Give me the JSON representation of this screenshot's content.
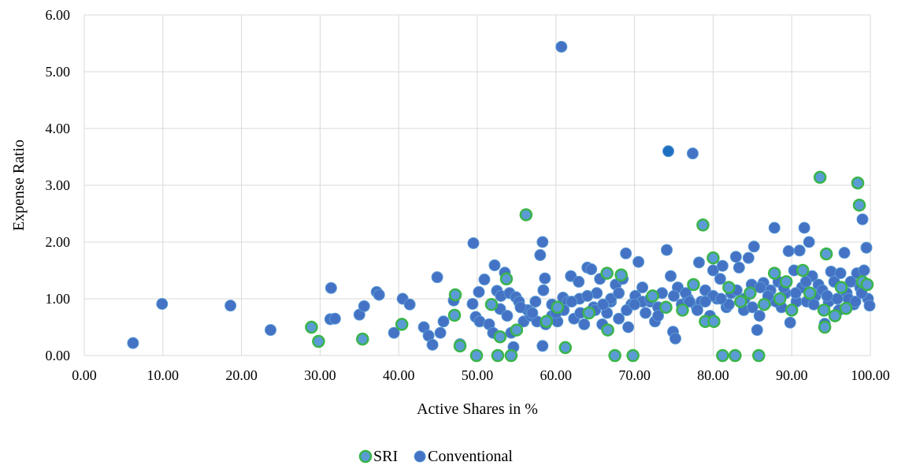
{
  "chart_data": {
    "type": "scatter",
    "xlabel": "Active Shares in %",
    "ylabel": "Expense Ratio",
    "xlim": [
      0,
      100
    ],
    "ylim": [
      0,
      6
    ],
    "x_ticks": [
      "0.00",
      "10.00",
      "20.00",
      "30.00",
      "40.00",
      "50.00",
      "60.00",
      "70.00",
      "80.00",
      "90.00",
      "100.00"
    ],
    "y_ticks": [
      "0.00",
      "1.00",
      "2.00",
      "3.00",
      "4.00",
      "5.00",
      "6.00"
    ],
    "grid": true,
    "legend": "bottom-center",
    "series": [
      {
        "name": "SRI",
        "fill": "#5b9bd5",
        "stroke": "#39b54a",
        "points": [
          [
            28.9,
            0.5
          ],
          [
            29.8,
            0.25
          ],
          [
            35.4,
            0.29
          ],
          [
            40.4,
            0.55
          ],
          [
            47.2,
            1.07
          ],
          [
            47.1,
            0.71
          ],
          [
            47.8,
            0.17
          ],
          [
            49.9,
            0.0
          ],
          [
            51.8,
            0.9
          ],
          [
            52.6,
            0.0
          ],
          [
            52.9,
            0.33
          ],
          [
            53.7,
            1.35
          ],
          [
            54.3,
            0.0
          ],
          [
            56.2,
            2.48
          ],
          [
            55.0,
            0.45
          ],
          [
            60.2,
            0.85
          ],
          [
            61.2,
            0.14
          ],
          [
            66.5,
            1.45
          ],
          [
            66.6,
            0.45
          ],
          [
            67.5,
            0.0
          ],
          [
            68.3,
            1.42
          ],
          [
            69.8,
            0.0
          ],
          [
            72.3,
            1.05
          ],
          [
            74.0,
            0.85
          ],
          [
            77.5,
            1.25
          ],
          [
            78.7,
            2.3
          ],
          [
            79.0,
            0.6
          ],
          [
            80.0,
            1.72
          ],
          [
            80.1,
            0.6
          ],
          [
            81.2,
            0.0
          ],
          [
            82.0,
            1.2
          ],
          [
            82.8,
            0.0
          ],
          [
            84.7,
            1.1
          ],
          [
            85.8,
            0.0
          ],
          [
            86.5,
            0.9
          ],
          [
            87.8,
            1.45
          ],
          [
            88.5,
            1.0
          ],
          [
            90.0,
            0.8
          ],
          [
            91.4,
            1.5
          ],
          [
            92.3,
            1.1
          ],
          [
            93.6,
            3.14
          ],
          [
            94.2,
            0.5
          ],
          [
            94.4,
            1.79
          ],
          [
            95.5,
            0.7
          ],
          [
            96.3,
            1.2
          ],
          [
            96.9,
            0.83
          ],
          [
            98.4,
            3.04
          ],
          [
            98.6,
            2.65
          ],
          [
            99.0,
            1.3
          ],
          [
            99.6,
            1.25
          ],
          [
            94.1,
            0.8
          ],
          [
            89.3,
            1.3
          ],
          [
            83.5,
            0.95
          ],
          [
            76.1,
            0.8
          ],
          [
            64.2,
            0.75
          ],
          [
            58.8,
            0.6
          ]
        ]
      },
      {
        "name": "Conventional",
        "fill": "#4472c4",
        "stroke": "#5b9bd5",
        "points": [
          [
            6.2,
            0.22
          ],
          [
            9.9,
            0.91
          ],
          [
            18.6,
            0.88
          ],
          [
            23.7,
            0.45
          ],
          [
            31.4,
            1.19
          ],
          [
            31.3,
            0.64
          ],
          [
            31.9,
            0.65
          ],
          [
            35.0,
            0.72
          ],
          [
            35.6,
            0.87
          ],
          [
            37.2,
            1.12
          ],
          [
            37.5,
            1.07
          ],
          [
            39.4,
            0.4
          ],
          [
            40.5,
            1.0
          ],
          [
            41.4,
            0.9
          ],
          [
            43.2,
            0.5
          ],
          [
            43.8,
            0.35
          ],
          [
            44.3,
            0.19
          ],
          [
            44.9,
            1.38
          ],
          [
            45.3,
            0.4
          ],
          [
            45.7,
            0.6
          ],
          [
            47.0,
            0.97
          ],
          [
            47.8,
            0.2
          ],
          [
            49.5,
            1.98
          ],
          [
            49.4,
            0.91
          ],
          [
            49.8,
            0.68
          ],
          [
            50.2,
            1.12
          ],
          [
            50.3,
            0.6
          ],
          [
            50.9,
            1.34
          ],
          [
            51.5,
            0.55
          ],
          [
            52.0,
            0.4
          ],
          [
            52.2,
            1.59
          ],
          [
            52.5,
            1.14
          ],
          [
            52.9,
            0.82
          ],
          [
            53.0,
            1.05
          ],
          [
            53.5,
            1.46
          ],
          [
            53.8,
            0.7
          ],
          [
            54.1,
            1.1
          ],
          [
            54.3,
            0.4
          ],
          [
            54.6,
            0.15
          ],
          [
            54.9,
            1.03
          ],
          [
            55.3,
            0.95
          ],
          [
            55.9,
            0.6
          ],
          [
            56.4,
            0.8
          ],
          [
            56.8,
            0.7
          ],
          [
            57.4,
            0.95
          ],
          [
            57.6,
            0.6
          ],
          [
            58.0,
            1.77
          ],
          [
            58.3,
            2.0
          ],
          [
            58.4,
            1.15
          ],
          [
            58.6,
            1.36
          ],
          [
            58.3,
            0.17
          ],
          [
            58.7,
            0.55
          ],
          [
            59.5,
            0.7
          ],
          [
            60.2,
            0.6
          ],
          [
            60.7,
            5.44
          ],
          [
            60.9,
            1.02
          ],
          [
            61.5,
            0.95
          ],
          [
            61.9,
            1.4
          ],
          [
            62.3,
            0.65
          ],
          [
            62.9,
            1.3
          ],
          [
            63.1,
            0.75
          ],
          [
            63.6,
            0.55
          ],
          [
            64.0,
            1.55
          ],
          [
            64.5,
            1.52
          ],
          [
            64.8,
            0.85
          ],
          [
            65.2,
            1.1
          ],
          [
            65.6,
            1.35
          ],
          [
            65.9,
            0.55
          ],
          [
            66.5,
            0.75
          ],
          [
            67.0,
            0.95
          ],
          [
            67.6,
            1.25
          ],
          [
            68.0,
            0.65
          ],
          [
            68.5,
            1.35
          ],
          [
            68.9,
            1.8
          ],
          [
            69.2,
            0.5
          ],
          [
            69.6,
            0.9
          ],
          [
            70.1,
            1.05
          ],
          [
            70.5,
            1.65
          ],
          [
            71.0,
            1.2
          ],
          [
            71.4,
            0.75
          ],
          [
            72.0,
            0.95
          ],
          [
            72.6,
            0.6
          ],
          [
            73.0,
            0.85
          ],
          [
            73.5,
            1.1
          ],
          [
            74.1,
            1.86
          ],
          [
            74.3,
            3.6
          ],
          [
            74.6,
            1.4
          ],
          [
            74.9,
            0.42
          ],
          [
            75.2,
            0.3
          ],
          [
            75.5,
            1.2
          ],
          [
            76.0,
            0.9
          ],
          [
            76.8,
            1.0
          ],
          [
            77.4,
            3.56
          ],
          [
            77.9,
            0.85
          ],
          [
            78.2,
            1.64
          ],
          [
            78.5,
            0.95
          ],
          [
            79.0,
            1.15
          ],
          [
            79.6,
            0.7
          ],
          [
            80.0,
            1.5
          ],
          [
            80.5,
            1.0
          ],
          [
            80.9,
            1.35
          ],
          [
            81.2,
            1.58
          ],
          [
            81.7,
            0.85
          ],
          [
            82.3,
            1.1
          ],
          [
            82.9,
            1.74
          ],
          [
            83.3,
            1.55
          ],
          [
            83.9,
            0.8
          ],
          [
            84.5,
            1.72
          ],
          [
            84.9,
            1.25
          ],
          [
            85.2,
            1.92
          ],
          [
            85.6,
            0.45
          ],
          [
            85.9,
            0.7
          ],
          [
            86.4,
            1.28
          ],
          [
            86.9,
            0.95
          ],
          [
            87.3,
            1.15
          ],
          [
            87.8,
            2.25
          ],
          [
            88.3,
            1.3
          ],
          [
            88.7,
            0.85
          ],
          [
            89.2,
            1.1
          ],
          [
            89.6,
            1.84
          ],
          [
            89.8,
            0.58
          ],
          [
            90.3,
            1.5
          ],
          [
            90.6,
            0.95
          ],
          [
            91.0,
            1.85
          ],
          [
            91.3,
            1.2
          ],
          [
            91.6,
            2.25
          ],
          [
            91.9,
            0.95
          ],
          [
            92.2,
            2.0
          ],
          [
            92.6,
            1.4
          ],
          [
            93.0,
            1.05
          ],
          [
            93.4,
            1.25
          ],
          [
            93.9,
            1.15
          ],
          [
            94.2,
            0.56
          ],
          [
            94.7,
            0.95
          ],
          [
            95.0,
            1.48
          ],
          [
            95.4,
            1.3
          ],
          [
            95.8,
            1.0
          ],
          [
            96.2,
            1.45
          ],
          [
            96.7,
            1.81
          ],
          [
            97.0,
            1.1
          ],
          [
            97.5,
            1.3
          ],
          [
            97.9,
            0.9
          ],
          [
            98.3,
            1.45
          ],
          [
            98.7,
            1.2
          ],
          [
            99.0,
            2.4
          ],
          [
            99.2,
            1.5
          ],
          [
            99.5,
            1.9
          ],
          [
            99.7,
            1.0
          ],
          [
            99.9,
            0.88
          ],
          [
            88.0,
            0.95
          ],
          [
            86.0,
            1.2
          ],
          [
            84.0,
            1.0
          ],
          [
            82.0,
            0.9
          ],
          [
            80.0,
            1.05
          ],
          [
            78.0,
            0.8
          ],
          [
            76.5,
            1.1
          ],
          [
            73.0,
            0.7
          ],
          [
            71.0,
            0.95
          ],
          [
            69.0,
            0.8
          ],
          [
            67.0,
            1.0
          ],
          [
            65.0,
            0.8
          ],
          [
            63.0,
            1.0
          ],
          [
            61.0,
            0.8
          ],
          [
            59.5,
            0.9
          ],
          [
            57.0,
            0.75
          ],
          [
            55.5,
            0.85
          ],
          [
            90.5,
            1.1
          ],
          [
            92.8,
            0.9
          ],
          [
            94.5,
            1.05
          ],
          [
            96.0,
            0.8
          ],
          [
            97.2,
            1.0
          ],
          [
            98.1,
            0.95
          ],
          [
            98.9,
            1.1
          ],
          [
            91.8,
            1.3
          ],
          [
            89.0,
            1.2
          ],
          [
            87.0,
            1.05
          ],
          [
            85.0,
            0.85
          ],
          [
            83.0,
            1.15
          ],
          [
            81.0,
            1.0
          ],
          [
            79.0,
            0.95
          ],
          [
            77.0,
            0.95
          ],
          [
            75.0,
            1.05
          ],
          [
            72.0,
            1.0
          ],
          [
            70.0,
            0.9
          ],
          [
            68.0,
            1.1
          ],
          [
            66.0,
            0.9
          ],
          [
            64.0,
            1.05
          ],
          [
            62.0,
            0.95
          ],
          [
            60.0,
            0.75
          ]
        ]
      }
    ]
  },
  "highlight_color": "#1f6fc1"
}
